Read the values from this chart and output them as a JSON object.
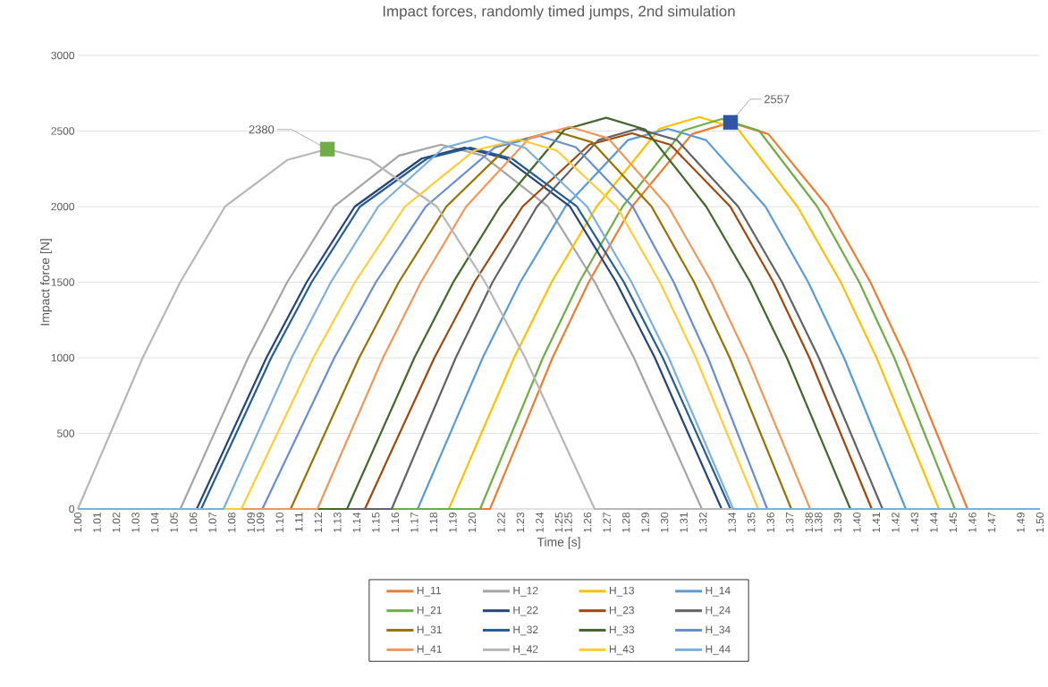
{
  "chart_data": {
    "type": "line",
    "title": "Impact forces, randomly timed jumps, 2nd simulation",
    "xlabel": "Time [s]",
    "ylabel": "Impact force [N]",
    "xlim": [
      1.0,
      1.5
    ],
    "ylim": [
      0,
      3000
    ],
    "yticks": [
      0,
      500,
      1000,
      1500,
      2000,
      2500,
      3000
    ],
    "xticks": [
      {
        "value": 1.0,
        "label": "1.00"
      },
      {
        "value": 1.01,
        "label": "1.01"
      },
      {
        "value": 1.02,
        "label": "1.02"
      },
      {
        "value": 1.03,
        "label": "1.03"
      },
      {
        "value": 1.04,
        "label": "1.04"
      },
      {
        "value": 1.05,
        "label": "1.05"
      },
      {
        "value": 1.06,
        "label": "1.06"
      },
      {
        "value": 1.07,
        "label": "1.07"
      },
      {
        "value": 1.08,
        "label": "1.08"
      },
      {
        "value": 1.09,
        "label": "1.09"
      },
      {
        "value": 1.0949,
        "label": "1.09"
      },
      {
        "value": 1.1049,
        "label": "1.10"
      },
      {
        "value": 1.1149,
        "label": "1.11"
      },
      {
        "value": 1.1249,
        "label": "1.12"
      },
      {
        "value": 1.1349,
        "label": "1.13"
      },
      {
        "value": 1.1449,
        "label": "1.14"
      },
      {
        "value": 1.1549,
        "label": "1.15"
      },
      {
        "value": 1.1649,
        "label": "1.16"
      },
      {
        "value": 1.1749,
        "label": "1.17"
      },
      {
        "value": 1.1849,
        "label": "1.18"
      },
      {
        "value": 1.1949,
        "label": "1.19"
      },
      {
        "value": 1.2049,
        "label": "1.20"
      },
      {
        "value": 1.22,
        "label": "1.22"
      },
      {
        "value": 1.23,
        "label": "1.23"
      },
      {
        "value": 1.24,
        "label": "1.24"
      },
      {
        "value": 1.25,
        "label": "1.25"
      },
      {
        "value": 1.2549,
        "label": "1.25"
      },
      {
        "value": 1.2649,
        "label": "1.26"
      },
      {
        "value": 1.2749,
        "label": "1.27"
      },
      {
        "value": 1.2849,
        "label": "1.28"
      },
      {
        "value": 1.2949,
        "label": "1.29"
      },
      {
        "value": 1.3049,
        "label": "1.30"
      },
      {
        "value": 1.3149,
        "label": "1.31"
      },
      {
        "value": 1.3249,
        "label": "1.32"
      },
      {
        "value": 1.34,
        "label": "1.34"
      },
      {
        "value": 1.35,
        "label": "1.35"
      },
      {
        "value": 1.36,
        "label": "1.36"
      },
      {
        "value": 1.37,
        "label": "1.37"
      },
      {
        "value": 1.38,
        "label": "1.38"
      },
      {
        "value": 1.3849,
        "label": "1.38"
      },
      {
        "value": 1.3949,
        "label": "1.39"
      },
      {
        "value": 1.4049,
        "label": "1.40"
      },
      {
        "value": 1.4149,
        "label": "1.41"
      },
      {
        "value": 1.4249,
        "label": "1.42"
      },
      {
        "value": 1.4349,
        "label": "1.43"
      },
      {
        "value": 1.4449,
        "label": "1.44"
      },
      {
        "value": 1.4549,
        "label": "1.45"
      },
      {
        "value": 1.4649,
        "label": "1.46"
      },
      {
        "value": 1.4749,
        "label": "1.47"
      },
      {
        "value": 1.49,
        "label": "1.49"
      },
      {
        "value": 1.5,
        "label": "1.50"
      }
    ],
    "grid": "y",
    "legend": "bottom",
    "marker": "none",
    "line_style": "solid",
    "series": [
      {
        "name": "H_11",
        "color": "#ed7d31",
        "x": [
          1.0,
          1.2142,
          1.2305,
          1.2467,
          1.2655,
          1.288,
          1.3192,
          1.3392,
          1.3589,
          1.3897,
          1.4119,
          1.4304,
          1.4464,
          1.4624,
          1.5
        ],
        "values": [
          0,
          0,
          500,
          1000,
          1500,
          2000,
          2480,
          2557,
          2480,
          2000,
          1500,
          1000,
          500,
          0,
          0
        ]
      },
      {
        "name": "H_12",
        "color": "#a5a5a5",
        "x": [
          1.0,
          1.0533,
          1.0709,
          1.0885,
          1.1088,
          1.1332,
          1.167,
          1.1887,
          1.2104,
          1.2443,
          1.2687,
          1.289,
          1.3067,
          1.3243,
          1.5
        ],
        "values": [
          0,
          0,
          500,
          1000,
          1500,
          2000,
          2338,
          2410,
          2338,
          2000,
          1500,
          1000,
          500,
          0,
          0
        ]
      },
      {
        "name": "H_13",
        "color": "#ffc000",
        "x": [
          1.0,
          1.1928,
          1.2097,
          1.2267,
          1.2462,
          1.2696,
          1.3022,
          1.323,
          1.3429,
          1.374,
          1.3965,
          1.4151,
          1.4313,
          1.4475,
          1.5
        ],
        "values": [
          0,
          0,
          500,
          1000,
          1500,
          2000,
          2515,
          2593,
          2515,
          2000,
          1500,
          1000,
          500,
          0,
          0
        ]
      },
      {
        "name": "H_14",
        "color": "#5b9bd5",
        "x": [
          1.0,
          1.1766,
          1.1935,
          1.2104,
          1.2299,
          1.2534,
          1.2859,
          1.3067,
          1.3265,
          1.3574,
          1.3796,
          1.3982,
          1.4142,
          1.4303,
          1.5
        ],
        "values": [
          0,
          0,
          500,
          1000,
          1500,
          2000,
          2440,
          2515,
          2440,
          2000,
          1500,
          1000,
          500,
          0,
          0
        ]
      },
      {
        "name": "H_21",
        "color": "#70ad47",
        "x": [
          1.0,
          1.2091,
          1.2254,
          1.2417,
          1.2606,
          1.2831,
          1.3145,
          1.3346,
          1.354,
          1.3843,
          1.4061,
          1.4243,
          1.44,
          1.4558,
          1.5
        ],
        "values": [
          0,
          0,
          500,
          1000,
          1500,
          2000,
          2503,
          2580,
          2503,
          2000,
          1500,
          1000,
          500,
          0,
          0
        ]
      },
      {
        "name": "H_22",
        "color": "#264478",
        "x": [
          1.0,
          1.0618,
          1.0799,
          1.098,
          1.1189,
          1.1439,
          1.1787,
          1.201,
          1.2224,
          1.2558,
          1.2798,
          1.2999,
          1.3172,
          1.3346,
          1.5
        ],
        "values": [
          0,
          0,
          500,
          1000,
          1500,
          2000,
          2318,
          2390,
          2318,
          2000,
          1500,
          1000,
          500,
          0,
          0
        ]
      },
      {
        "name": "H_23",
        "color": "#9e480e",
        "x": [
          1.0,
          1.1492,
          1.1672,
          1.1853,
          1.2061,
          1.2311,
          1.2658,
          1.288,
          1.3079,
          1.3391,
          1.3615,
          1.3802,
          1.3964,
          1.4126,
          1.5
        ],
        "values": [
          0,
          0,
          500,
          1000,
          1500,
          2000,
          2410,
          2485,
          2410,
          2000,
          1500,
          1000,
          500,
          0,
          0
        ]
      },
      {
        "name": "H_24",
        "color": "#636363",
        "x": [
          1.0,
          1.1631,
          1.1797,
          1.1964,
          1.2155,
          1.2386,
          1.2705,
          1.291,
          1.3114,
          1.3432,
          1.366,
          1.3851,
          1.4017,
          1.4182,
          1.5
        ],
        "values": [
          0,
          0,
          500,
          1000,
          1500,
          2000,
          2440,
          2515,
          2440,
          2000,
          1500,
          1000,
          500,
          0,
          0
        ]
      },
      {
        "name": "H_31",
        "color": "#997300",
        "x": [
          1.0,
          1.1106,
          1.1284,
          1.1462,
          1.1668,
          1.1915,
          1.2258,
          1.2477,
          1.2674,
          1.2982,
          1.3203,
          1.3388,
          1.3548,
          1.3708,
          1.5
        ],
        "values": [
          0,
          0,
          500,
          1000,
          1500,
          2000,
          2425,
          2500,
          2425,
          2000,
          1500,
          1000,
          500,
          0,
          0
        ]
      },
      {
        "name": "H_32",
        "color": "#255e91",
        "x": [
          1.0,
          1.0641,
          1.0823,
          1.1005,
          1.1215,
          1.1466,
          1.1815,
          1.204,
          1.2256,
          1.2594,
          1.2838,
          1.304,
          1.3216,
          1.3392,
          1.5
        ],
        "values": [
          0,
          0,
          500,
          1000,
          1500,
          2000,
          2318,
          2390,
          2318,
          2000,
          1500,
          1000,
          500,
          0,
          0
        ]
      },
      {
        "name": "H_33",
        "color": "#43682b",
        "x": [
          1.0,
          1.1399,
          1.1574,
          1.1749,
          1.1951,
          1.2194,
          1.253,
          1.2746,
          1.2949,
          1.3266,
          1.3495,
          1.3685,
          1.385,
          1.4015,
          1.5
        ],
        "values": [
          0,
          0,
          500,
          1000,
          1500,
          2000,
          2510,
          2588,
          2510,
          2000,
          1500,
          1000,
          500,
          0,
          0
        ]
      },
      {
        "name": "H_34",
        "color": "#698ed0",
        "x": [
          1.0,
          1.0959,
          1.1146,
          1.1333,
          1.1549,
          1.1808,
          1.2168,
          1.2398,
          1.2588,
          1.2884,
          1.3097,
          1.3275,
          1.3429,
          1.3583,
          1.5
        ],
        "values": [
          0,
          0,
          500,
          1000,
          1500,
          2000,
          2393,
          2467,
          2393,
          2000,
          1500,
          1000,
          500,
          0,
          0
        ]
      },
      {
        "name": "H_41",
        "color": "#f1975a",
        "x": [
          1.0,
          1.1245,
          1.1415,
          1.1586,
          1.1783,
          1.2018,
          1.2346,
          1.2556,
          1.2756,
          1.3069,
          1.3294,
          1.3481,
          1.3644,
          1.3806,
          1.5
        ],
        "values": [
          0,
          0,
          500,
          1000,
          1500,
          2000,
          2452,
          2528,
          2452,
          2000,
          1500,
          1000,
          500,
          0,
          0
        ]
      },
      {
        "name": "H_42",
        "color": "#b7b7b7",
        "x": [
          1.0,
          1.0169,
          1.0337,
          1.0532,
          1.0765,
          1.1089,
          1.1297,
          1.1519,
          1.1866,
          1.2117,
          1.2325,
          1.2505,
          1.2686,
          1.5
        ],
        "values": [
          0,
          500,
          1000,
          1500,
          2000,
          2309,
          2380,
          2309,
          2000,
          1500,
          1000,
          500,
          0,
          0
        ]
      },
      {
        "name": "H_43",
        "color": "#ffcd33",
        "x": [
          1.0,
          1.085,
          1.1037,
          1.1224,
          1.144,
          1.17,
          1.206,
          1.229,
          1.2489,
          1.2801,
          1.3025,
          1.3212,
          1.3374,
          1.3536,
          1.5
        ],
        "values": [
          0,
          0,
          500,
          1000,
          1500,
          2000,
          2371,
          2444,
          2371,
          2000,
          1500,
          1000,
          500,
          0,
          0
        ]
      },
      {
        "name": "H_44",
        "color": "#7cafdd",
        "x": [
          1.0,
          1.0757,
          1.0934,
          1.1111,
          1.1315,
          1.1561,
          1.1901,
          1.2119,
          1.2325,
          1.2647,
          1.2878,
          1.3071,
          1.3239,
          1.3406,
          1.5
        ],
        "values": [
          0,
          0,
          500,
          1000,
          1500,
          2000,
          2389,
          2463,
          2389,
          2000,
          1500,
          1000,
          500,
          0,
          0
        ]
      },
      {
        "type": "scatter",
        "marker": "square",
        "color": "#70ad47",
        "x": [
          1.1297
        ],
        "values": [
          2380
        ],
        "value_labels": [
          "2380"
        ]
      },
      {
        "type": "scatter",
        "marker": "square",
        "color": "#2f55a4",
        "x": [
          1.3392
        ],
        "values": [
          2557
        ],
        "value_labels": [
          "2557"
        ]
      }
    ]
  }
}
